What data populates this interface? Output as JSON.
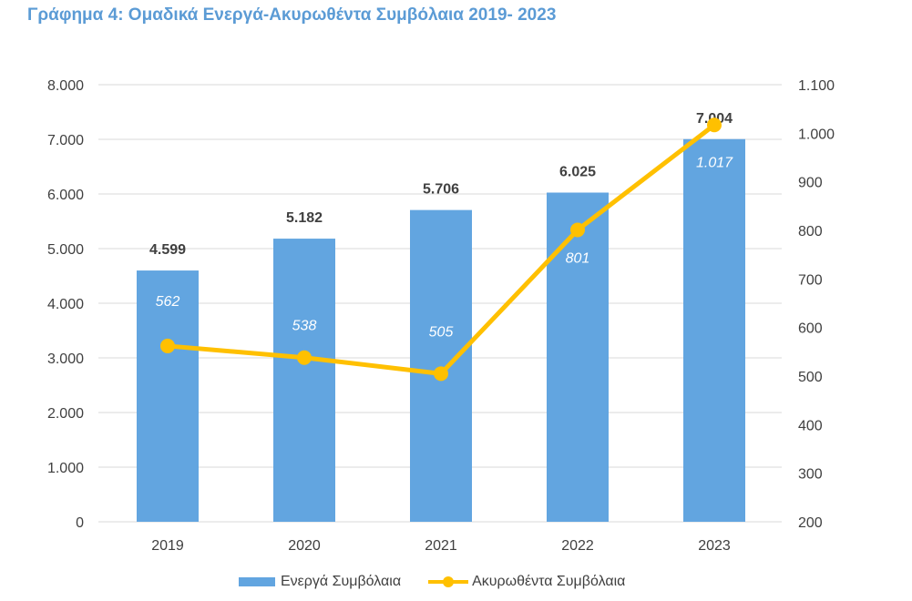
{
  "chart_data": {
    "type": "bar+line",
    "title": "Γράφημα 4: Ομαδικά Ενεργά-Ακυρωθέντα Συμβόλαια 2019- 2023",
    "categories": [
      "2019",
      "2020",
      "2021",
      "2022",
      "2023"
    ],
    "series": [
      {
        "name": "Ενεργά Συμβόλαια",
        "type": "bar",
        "axis": "left",
        "values": [
          4599,
          5182,
          5706,
          6025,
          7004
        ],
        "labels": [
          "4.599",
          "5.182",
          "5.706",
          "6.025",
          "7.004"
        ],
        "color": "#62a5e0"
      },
      {
        "name": "Ακυρωθέντα Συμβόλαια",
        "type": "line",
        "axis": "right",
        "values": [
          562,
          538,
          505,
          801,
          1017
        ],
        "labels": [
          "562",
          "538",
          "505",
          "801",
          "1.017"
        ],
        "color": "#ffc000"
      }
    ],
    "left_axis": {
      "ylim": [
        0,
        8000
      ],
      "ticks": [
        "0",
        "1.000",
        "2.000",
        "3.000",
        "4.000",
        "5.000",
        "6.000",
        "7.000",
        "8.000"
      ]
    },
    "right_axis": {
      "ylim": [
        200,
        1100
      ],
      "ticks": [
        "200",
        "300",
        "400",
        "500",
        "600",
        "700",
        "800",
        "900",
        "1.000",
        "1.100"
      ]
    },
    "grid": true,
    "legend": "bottom"
  }
}
